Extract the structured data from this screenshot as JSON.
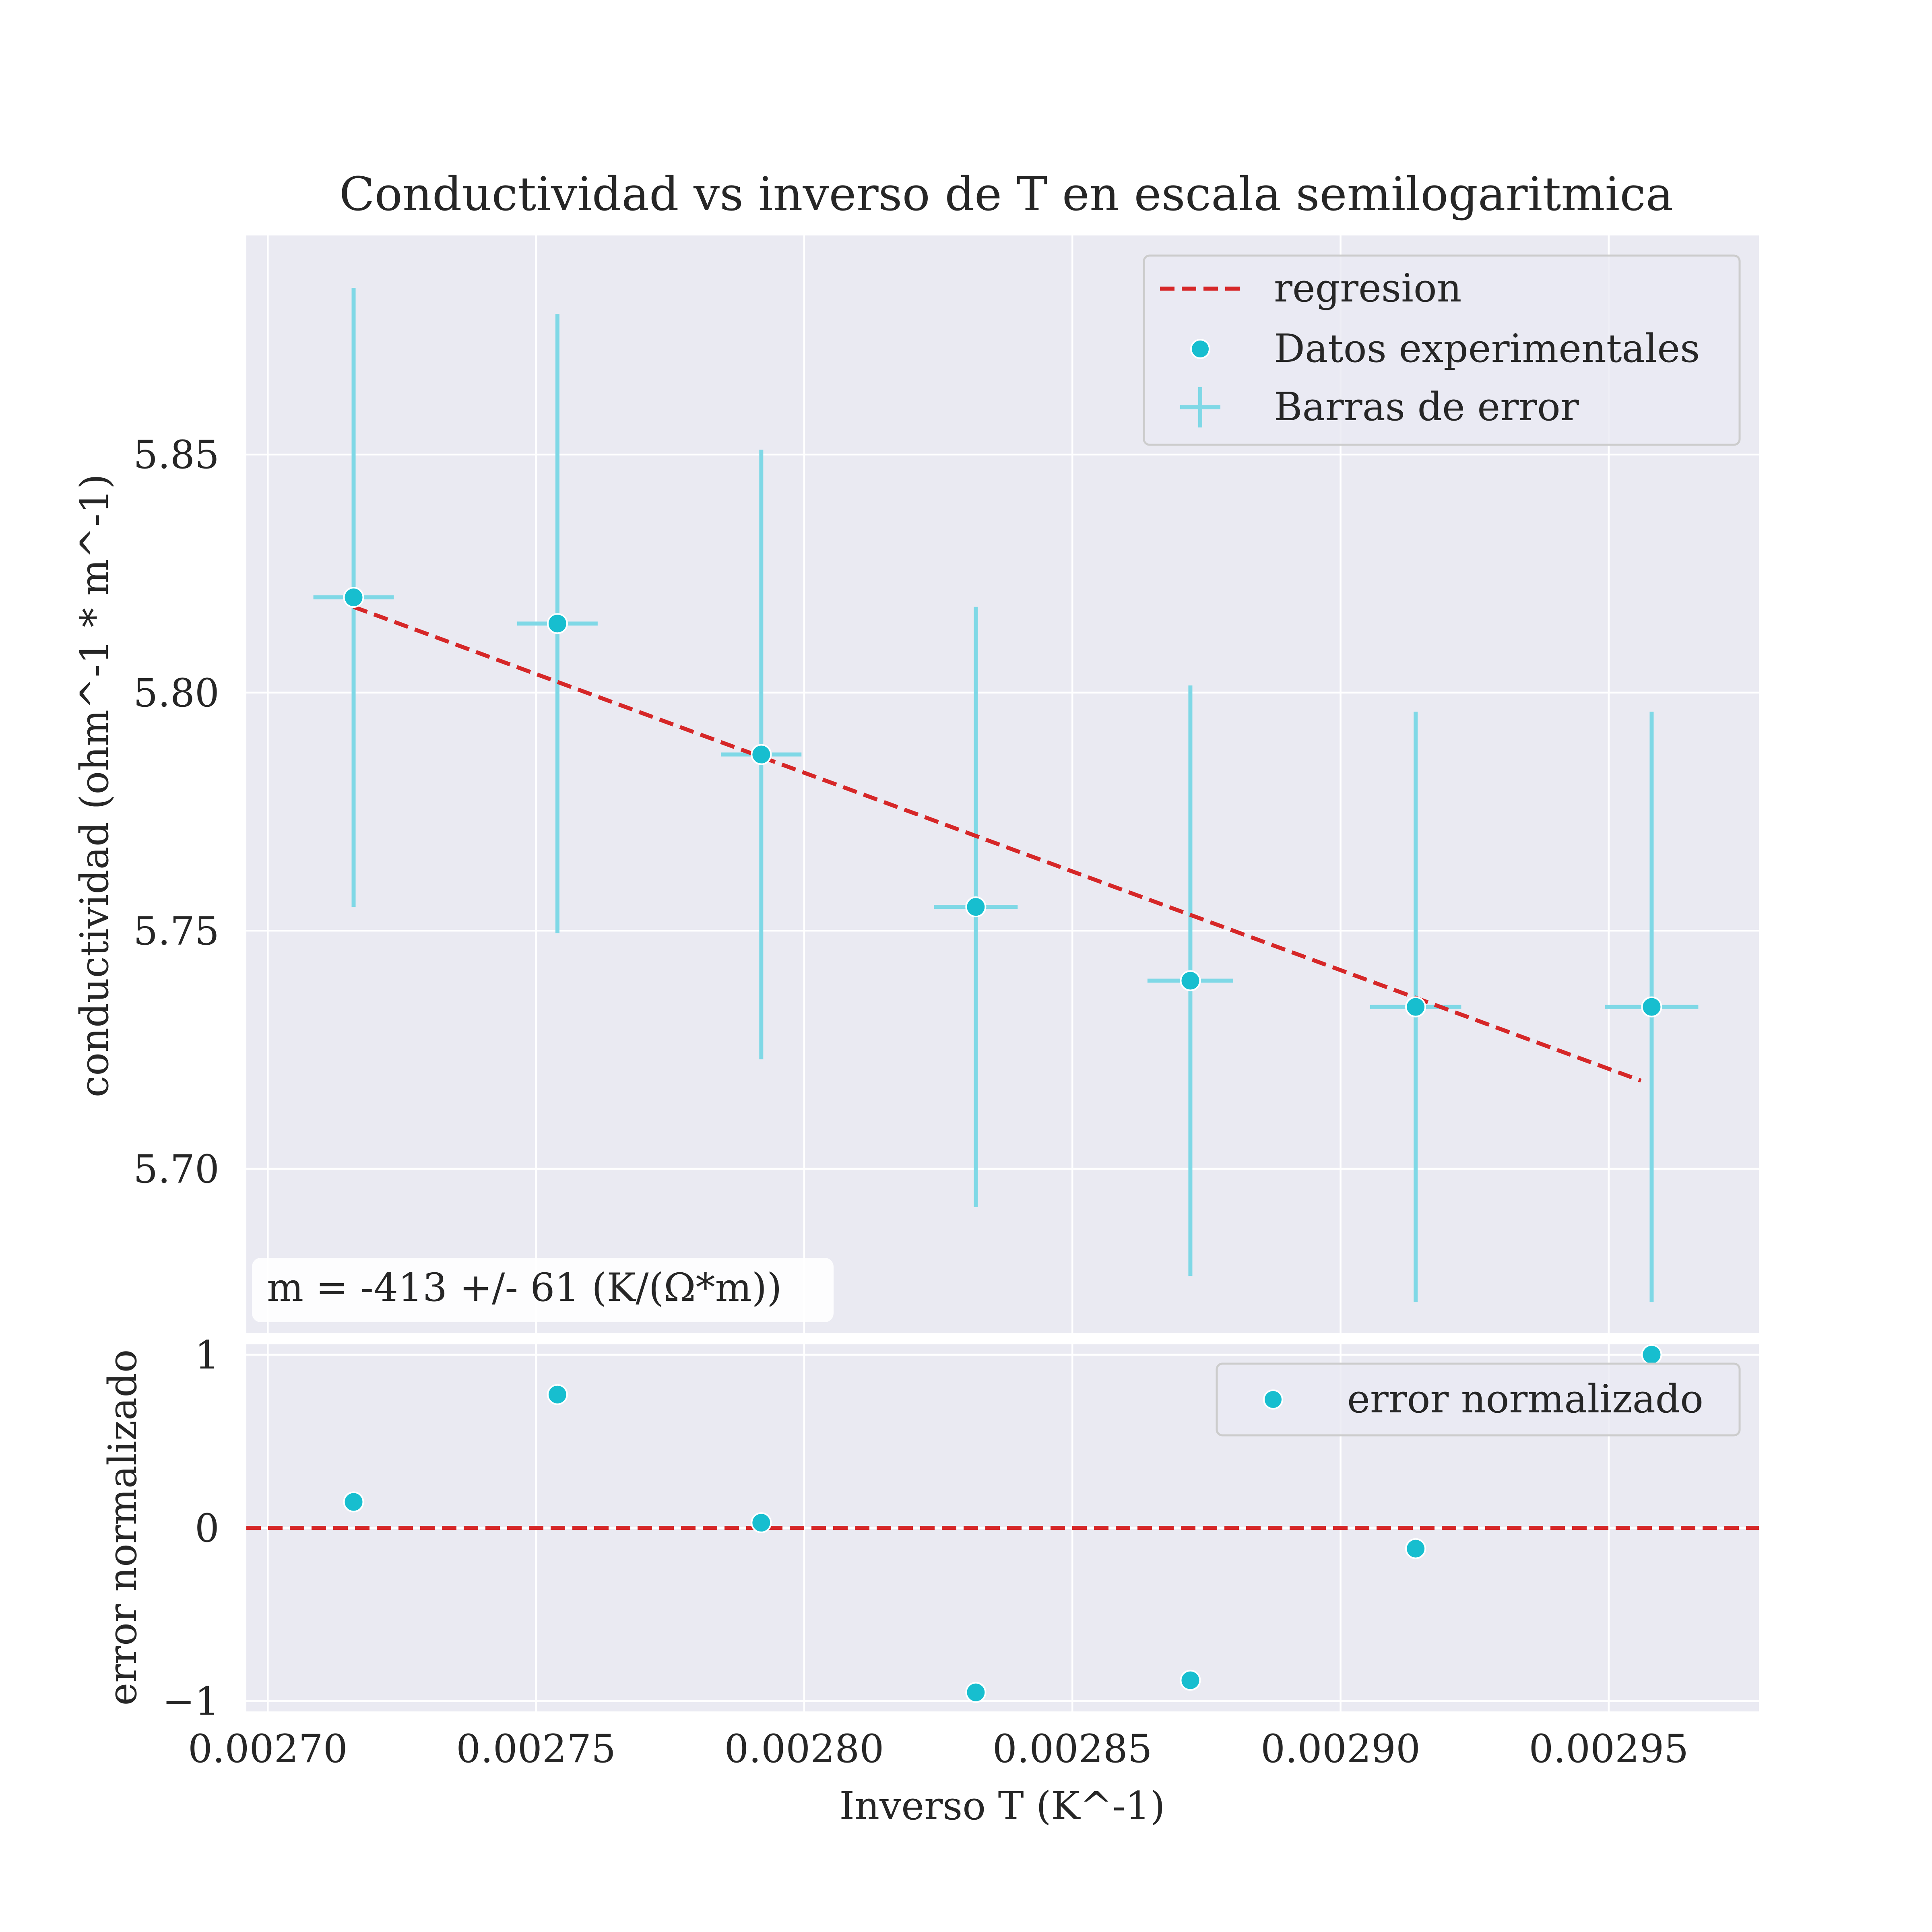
{
  "chart_data": [
    {
      "type": "scatter",
      "title": "Conductividad vs inverso de T en escala semilogaritmica",
      "xlabel": "",
      "ylabel": "conductividad (ohm^-1 * m^-1)",
      "xlim": [
        0.002696,
        0.002978
      ],
      "ylim": [
        5.6655,
        5.896
      ],
      "yticks": [
        5.7,
        5.75,
        5.8,
        5.85
      ],
      "ytick_labels": [
        "5.70",
        "5.75",
        "5.80",
        "5.85"
      ],
      "grid": true,
      "legend_position": "upper right",
      "legend": [
        "regresion",
        "Datos experimentales",
        "Barras de error"
      ],
      "series": [
        {
          "name": "Datos experimentales",
          "x": [
            0.002716,
            0.002754,
            0.002792,
            0.002832,
            0.002872,
            0.002914,
            0.002958
          ],
          "y": [
            5.82,
            5.8145,
            5.787,
            5.755,
            5.7395,
            5.734,
            5.734
          ],
          "yerr": [
            0.065,
            0.065,
            0.064,
            0.063,
            0.062,
            0.062,
            0.062
          ],
          "xerr": [
            7.5e-06,
            7.5e-06,
            7.5e-06,
            7.8e-06,
            8e-06,
            8.5e-06,
            8.7e-06
          ],
          "color": "#17becf"
        },
        {
          "name": "regresion",
          "x": [
            0.002716,
            0.002956
          ],
          "y": [
            5.818,
            5.7185
          ],
          "color": "#d62728",
          "style": "dashed"
        }
      ],
      "annotation": "m = -413 +/- 61 (K/(Ω*m))"
    },
    {
      "type": "scatter",
      "xlabel": "Inverso T (K^-1)",
      "ylabel": "error normalizado",
      "xlim": [
        0.002696,
        0.002978
      ],
      "ylim": [
        -1.06,
        1.06
      ],
      "xticks": [
        0.0027,
        0.00275,
        0.0028,
        0.00285,
        0.0029,
        0.00295
      ],
      "xtick_labels": [
        "0.00270",
        "0.00275",
        "0.00280",
        "0.00285",
        "0.00290",
        "0.00295"
      ],
      "yticks": [
        -1,
        0,
        1
      ],
      "ytick_labels": [
        "−1",
        "0",
        "1"
      ],
      "grid": true,
      "legend_position": "upper right",
      "legend": [
        "error normalizado"
      ],
      "hline": 0,
      "series": [
        {
          "name": "error normalizado",
          "x": [
            0.002716,
            0.002754,
            0.002792,
            0.002832,
            0.002872,
            0.002914,
            0.002958
          ],
          "y": [
            0.15,
            0.77,
            0.03,
            -0.95,
            -0.88,
            -0.12,
            1.0
          ],
          "color": "#17becf"
        }
      ]
    }
  ],
  "colors": {
    "points": "#17becf",
    "errorbars": "#7fd8e6",
    "regression": "#d62728",
    "axes_bg": "#eaeaf2"
  }
}
